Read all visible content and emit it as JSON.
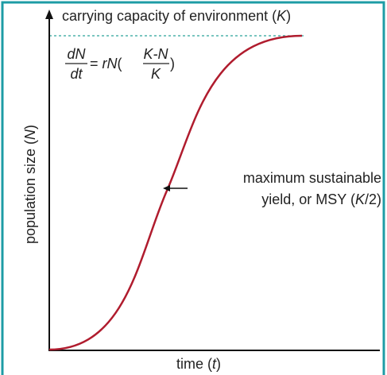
{
  "title": {
    "parts": [
      "carrying capacity of environment (",
      "K",
      ")"
    ]
  },
  "equation": {
    "left_numerator": "dN",
    "left_denominator": "dt",
    "equals": "= ",
    "r": "r",
    "n": "N",
    "open": "(",
    "right_numerator": "K-N",
    "right_denominator": "K",
    "close": ")"
  },
  "y_axis_label": {
    "parts": [
      "population size (",
      "N",
      ")"
    ]
  },
  "x_axis_label": {
    "parts": [
      "time (",
      "t",
      ")"
    ]
  },
  "annotation": {
    "line1": "maximum sustainable",
    "line2_parts": [
      "yield, or MSY (",
      "K",
      "/2)"
    ]
  }
}
